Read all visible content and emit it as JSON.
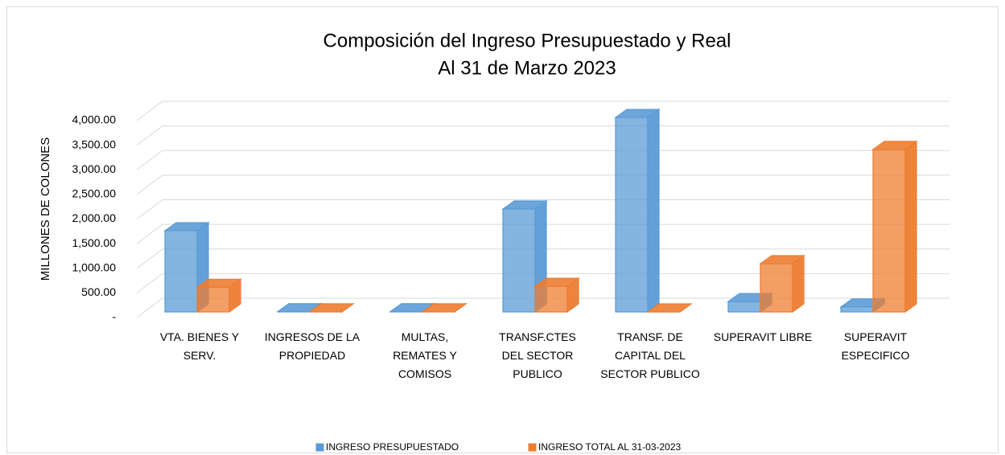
{
  "chart_data": {
    "type": "bar3d",
    "title": "Composición del Ingreso Presupuestado y Real",
    "subtitle": "Al 31 de Marzo 2023",
    "ylabel": "MILLONES DE COLONES",
    "categories": [
      "VTA. BIENES Y SERV.",
      "INGRESOS DE LA PROPIEDAD",
      "MULTAS, REMATES Y COMISOS",
      "TRANSF.CTES DEL SECTOR PUBLICO",
      "TRANSF. DE CAPITAL DEL SECTOR PUBLICO",
      "SUPERAVIT LIBRE",
      "SUPERAVIT ESPECIFICO"
    ],
    "series": [
      {
        "name": "INGRESO PRESUPUESTADO",
        "color": "#5b9bd5",
        "values": [
          1650,
          5,
          5,
          2090,
          3950,
          210,
          100
        ]
      },
      {
        "name": "INGRESO TOTAL AL 31-03-2023",
        "color": "#ed7d31",
        "values": [
          500,
          2,
          2,
          520,
          0,
          980,
          3300
        ]
      }
    ],
    "ylim": [
      0,
      4000
    ],
    "yticks": [
      {
        "value": 0,
        "label": "-"
      },
      {
        "value": 500,
        "label": "500.00"
      },
      {
        "value": 1000,
        "label": "1,000.00"
      },
      {
        "value": 1500,
        "label": "1,500.00"
      },
      {
        "value": 2000,
        "label": "2,000.00"
      },
      {
        "value": 2500,
        "label": "2,500.00"
      },
      {
        "value": 3000,
        "label": "3,000.00"
      },
      {
        "value": 3500,
        "label": "3,500.00"
      },
      {
        "value": 4000,
        "label": "4,000.00"
      }
    ],
    "grid": true,
    "legend": "bottom"
  }
}
